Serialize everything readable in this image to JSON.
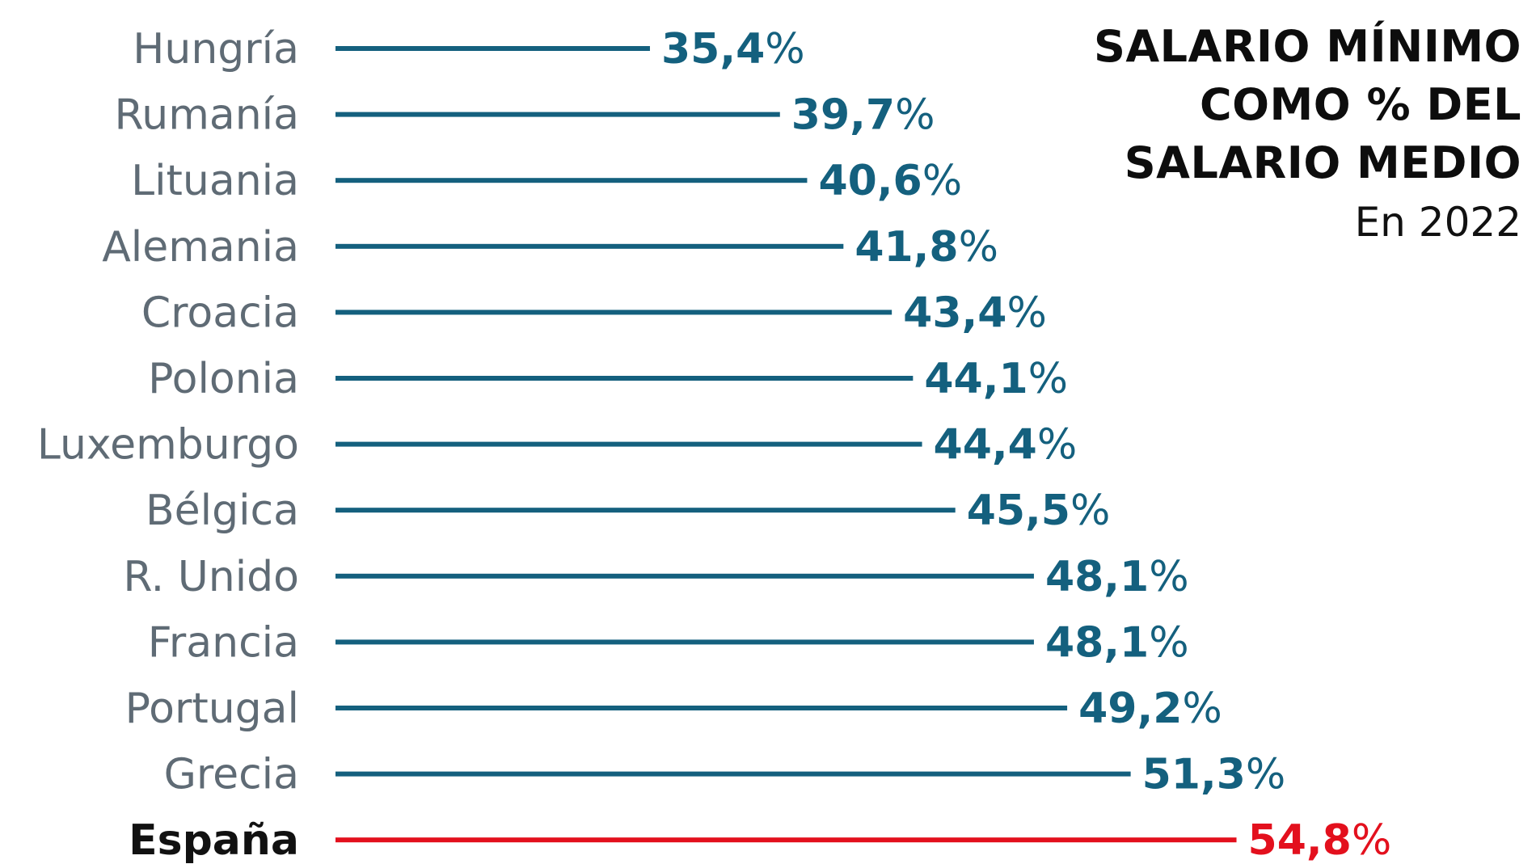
{
  "title_lines": [
    "SALARIO MÍNIMO",
    "COMO % DEL",
    "SALARIO MEDIO"
  ],
  "subtitle": "En 2022",
  "colors": {
    "bar": "#14607e",
    "highlight": "#e3101d",
    "category_text": "#5f6b75",
    "highlight_text": "#111111"
  },
  "chart_data": {
    "type": "bar",
    "orientation": "horizontal",
    "title": "SALARIO MÍNIMO COMO % DEL SALARIO MEDIO",
    "subtitle": "En 2022",
    "categories": [
      "Hungría",
      "Rumanía",
      "Lituania",
      "Alemania",
      "Croacia",
      "Polonia",
      "Luxemburgo",
      "Bélgica",
      "R. Unido",
      "Francia",
      "Portugal",
      "Grecia",
      "España"
    ],
    "values": [
      35.4,
      39.7,
      40.6,
      41.8,
      43.4,
      44.1,
      44.4,
      45.5,
      48.1,
      48.1,
      49.2,
      51.3,
      54.8
    ],
    "value_labels": [
      "35,4",
      "39,7",
      "40,6",
      "41,8",
      "43,4",
      "44,1",
      "44,4",
      "45,5",
      "48,1",
      "48,1",
      "49,2",
      "51,3",
      "54,8"
    ],
    "value_suffix": "%",
    "highlight_category": "España",
    "xlim": [
      25,
      56
    ],
    "grid": false,
    "legend": "none"
  }
}
